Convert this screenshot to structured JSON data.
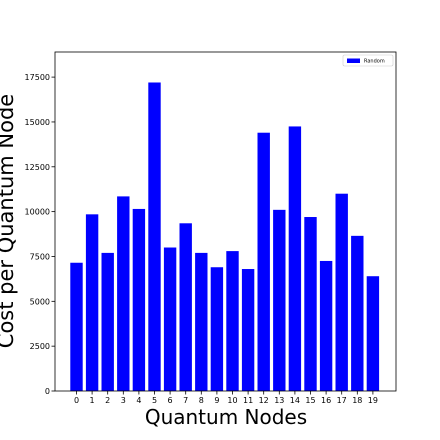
{
  "chart_data": {
    "type": "bar",
    "categories": [
      "0",
      "1",
      "2",
      "3",
      "4",
      "5",
      "6",
      "7",
      "8",
      "9",
      "10",
      "11",
      "12",
      "13",
      "14",
      "15",
      "16",
      "17",
      "18",
      "19"
    ],
    "series": [
      {
        "name": "Random",
        "color": "#0000ff",
        "values": [
          7150,
          9850,
          7700,
          10850,
          10150,
          17200,
          8000,
          9350,
          7700,
          6900,
          7800,
          6800,
          14400,
          10100,
          14750,
          9700,
          7250,
          11000,
          8650,
          6400
        ]
      }
    ],
    "title": "",
    "xlabel": "Quantum Nodes",
    "ylabel": "Cost per Quantum Node",
    "ylim": [
      0,
      18900
    ],
    "yticks": [
      0,
      2500,
      5000,
      7500,
      10000,
      12500,
      15000,
      17500
    ],
    "grid": false,
    "legend_position": "top-right"
  }
}
